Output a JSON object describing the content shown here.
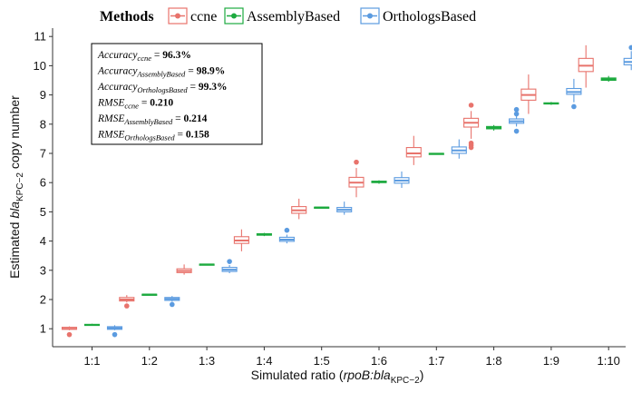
{
  "chart_data": {
    "type": "boxplot",
    "legend": {
      "title": "Methods",
      "position": "top",
      "entries": [
        {
          "name": "ccne",
          "color": "#E8736C"
        },
        {
          "name": "AssemblyBased",
          "color": "#1DAA3F"
        },
        {
          "name": "OrthologsBased",
          "color": "#5B9BE0"
        }
      ]
    },
    "xlabel": {
      "prefix": "Simulated ratio (",
      "gene1": "rpoB",
      "sep": ":",
      "gene2": "bla",
      "sub": "KPC−2",
      "suffix": ")"
    },
    "ylabel": {
      "prefix": "Estimated ",
      "gene": "bla",
      "sub": "KPC−2",
      "suffix": " copy number"
    },
    "categories": [
      "1:1",
      "1:2",
      "1:3",
      "1:4",
      "1:5",
      "1:6",
      "1:7",
      "1:8",
      "1:9",
      "1:10"
    ],
    "ylim": [
      0.6,
      11.2
    ],
    "yticks": [
      1,
      2,
      3,
      4,
      5,
      6,
      7,
      8,
      9,
      10,
      11
    ],
    "grid": false,
    "series": [
      {
        "name": "ccne",
        "color": "#E8736C",
        "boxes": [
          {
            "min": 0.95,
            "q1": 0.98,
            "median": 1.0,
            "q3": 1.05,
            "max": 1.08,
            "outliers": [
              0.8
            ]
          },
          {
            "min": 1.9,
            "q1": 1.95,
            "median": 2.0,
            "q3": 2.07,
            "max": 2.15,
            "outliers": [
              1.78
            ]
          },
          {
            "min": 2.85,
            "q1": 2.92,
            "median": 2.98,
            "q3": 3.05,
            "max": 3.2,
            "outliers": []
          },
          {
            "min": 3.65,
            "q1": 3.92,
            "median": 4.02,
            "q3": 4.15,
            "max": 4.4,
            "outliers": []
          },
          {
            "min": 4.75,
            "q1": 4.95,
            "median": 5.05,
            "q3": 5.18,
            "max": 5.45,
            "outliers": []
          },
          {
            "min": 5.5,
            "q1": 5.85,
            "median": 6.0,
            "q3": 6.18,
            "max": 6.5,
            "outliers": [
              6.7
            ]
          },
          {
            "min": 6.6,
            "q1": 6.88,
            "median": 7.0,
            "q3": 7.2,
            "max": 7.6,
            "outliers": []
          },
          {
            "min": 7.5,
            "q1": 7.9,
            "median": 8.05,
            "q3": 8.2,
            "max": 8.45,
            "outliers": [
              8.65,
              7.35,
              7.28,
              7.2
            ]
          },
          {
            "min": 8.35,
            "q1": 8.82,
            "median": 9.0,
            "q3": 9.2,
            "max": 9.7,
            "outliers": []
          },
          {
            "min": 9.25,
            "q1": 9.8,
            "median": 10.0,
            "q3": 10.25,
            "max": 10.7,
            "outliers": []
          }
        ]
      },
      {
        "name": "AssemblyBased",
        "color": "#1DAA3F",
        "boxes": [
          {
            "min": 1.1,
            "q1": 1.12,
            "median": 1.13,
            "q3": 1.15,
            "max": 1.17,
            "outliers": []
          },
          {
            "min": 2.15,
            "q1": 2.16,
            "median": 2.17,
            "q3": 2.18,
            "max": 2.19,
            "outliers": []
          },
          {
            "min": 3.18,
            "q1": 3.19,
            "median": 3.2,
            "q3": 3.21,
            "max": 3.22,
            "outliers": []
          },
          {
            "min": 4.17,
            "q1": 4.2,
            "median": 4.22,
            "q3": 4.25,
            "max": 4.28,
            "outliers": []
          },
          {
            "min": 5.13,
            "q1": 5.14,
            "median": 5.15,
            "q3": 5.16,
            "max": 5.17,
            "outliers": []
          },
          {
            "min": 5.96,
            "q1": 6.0,
            "median": 6.02,
            "q3": 6.05,
            "max": 6.08,
            "outliers": []
          },
          {
            "min": 6.97,
            "q1": 6.98,
            "median": 6.99,
            "q3": 7.0,
            "max": 7.01,
            "outliers": []
          },
          {
            "min": 7.78,
            "q1": 7.84,
            "median": 7.88,
            "q3": 7.92,
            "max": 7.97,
            "outliers": []
          },
          {
            "min": 8.66,
            "q1": 8.69,
            "median": 8.71,
            "q3": 8.73,
            "max": 8.76,
            "outliers": []
          },
          {
            "min": 9.45,
            "q1": 9.5,
            "median": 9.54,
            "q3": 9.58,
            "max": 9.65,
            "outliers": []
          }
        ]
      },
      {
        "name": "OrthologsBased",
        "color": "#5B9BE0",
        "boxes": [
          {
            "min": 0.95,
            "q1": 0.98,
            "median": 1.02,
            "q3": 1.07,
            "max": 1.12,
            "outliers": [
              0.8
            ]
          },
          {
            "min": 1.93,
            "q1": 1.97,
            "median": 2.02,
            "q3": 2.07,
            "max": 2.12,
            "outliers": [
              1.83
            ]
          },
          {
            "min": 2.9,
            "q1": 2.96,
            "median": 3.02,
            "q3": 3.1,
            "max": 3.18,
            "outliers": [
              3.3
            ]
          },
          {
            "min": 3.92,
            "q1": 3.99,
            "median": 4.05,
            "q3": 4.13,
            "max": 4.22,
            "outliers": [
              4.37
            ]
          },
          {
            "min": 4.9,
            "q1": 5.0,
            "median": 5.07,
            "q3": 5.15,
            "max": 5.35,
            "outliers": []
          },
          {
            "min": 5.82,
            "q1": 5.98,
            "median": 6.07,
            "q3": 6.17,
            "max": 6.38,
            "outliers": []
          },
          {
            "min": 6.82,
            "q1": 7.0,
            "median": 7.1,
            "q3": 7.22,
            "max": 7.48,
            "outliers": []
          },
          {
            "min": 7.92,
            "q1": 8.03,
            "median": 8.1,
            "q3": 8.18,
            "max": 8.32,
            "outliers": [
              8.5,
              8.35,
              7.76
            ]
          },
          {
            "min": 8.75,
            "q1": 9.02,
            "median": 9.1,
            "q3": 9.22,
            "max": 9.55,
            "outliers": [
              8.6
            ]
          },
          {
            "min": 9.85,
            "q1": 10.03,
            "median": 10.13,
            "q3": 10.25,
            "max": 10.5,
            "outliers": [
              10.62
            ]
          }
        ]
      }
    ],
    "annotation": {
      "position": "top-left",
      "lines": [
        {
          "label": "Accuracy",
          "sub": "ccne",
          "value": "96.3%"
        },
        {
          "label": "Accuracy",
          "sub": "AssemblyBased",
          "value": "98.9%"
        },
        {
          "label": "Accuracy",
          "sub": "OrthologsBased",
          "value": "99.3%"
        },
        {
          "label": "RMSE",
          "sub": "ccne",
          "value": "0.210"
        },
        {
          "label": "RMSE",
          "sub": "AssemblyBased",
          "value": "0.214"
        },
        {
          "label": "RMSE",
          "sub": "OrthologsBased",
          "value": "0.158"
        }
      ]
    }
  }
}
